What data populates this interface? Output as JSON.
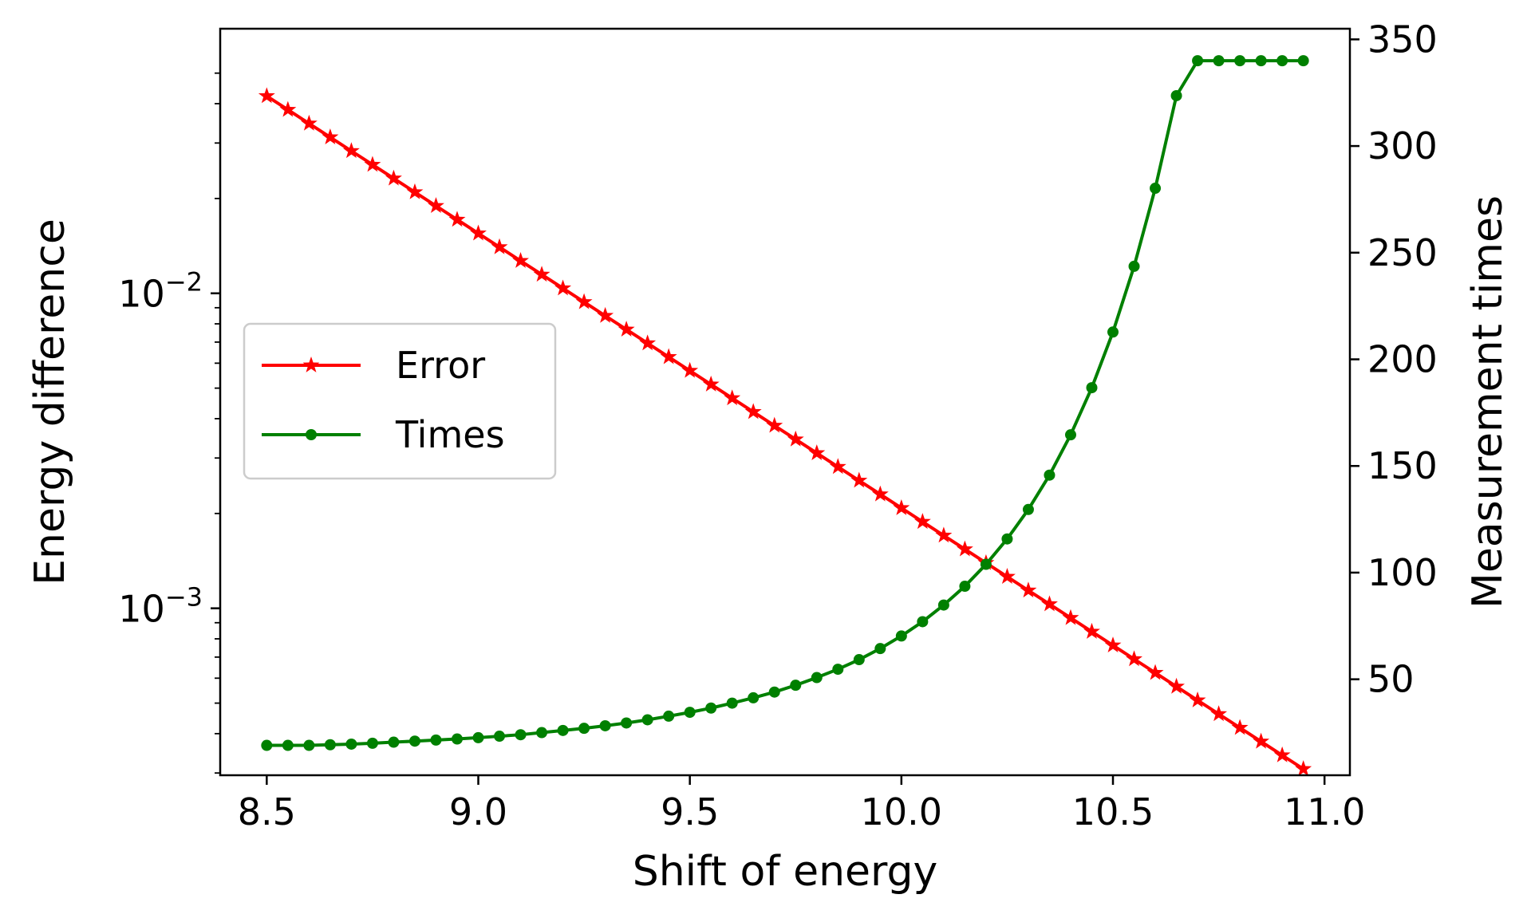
{
  "chart_data": {
    "type": "line",
    "title": "",
    "xlabel": "Shift of energy",
    "ylabel_left": "Energy difference",
    "ylabel_right": "Measurement times",
    "xlim": [
      8.39,
      11.06
    ],
    "ylim_left_log10": [
      -3.53,
      -1.16
    ],
    "ylim_right": [
      5,
      355
    ],
    "x_ticks": [
      8.5,
      9.0,
      9.5,
      10.0,
      10.5,
      11.0
    ],
    "x_tick_labels": [
      "8.5",
      "9.0",
      "9.5",
      "10.0",
      "10.5",
      "11.0"
    ],
    "y_left_major_ticks": [
      {
        "value": 0.01,
        "base": "10",
        "exp": "−2"
      },
      {
        "value": 0.001,
        "base": "10",
        "exp": "−3"
      }
    ],
    "y_left_minor_ticks": [
      0.0003,
      0.0004,
      0.0005,
      0.0006,
      0.0007,
      0.0008,
      0.0009,
      0.002,
      0.003,
      0.004,
      0.005,
      0.006,
      0.007,
      0.008,
      0.009,
      0.02,
      0.03,
      0.04,
      0.05
    ],
    "y_right_ticks": [
      50,
      100,
      150,
      200,
      250,
      300,
      350
    ],
    "y_right_tick_labels": [
      "50",
      "100",
      "150",
      "200",
      "250",
      "300",
      "350"
    ],
    "legend_position": "center-left",
    "series": [
      {
        "name": "Error",
        "axis": "left",
        "color": "#ff0000",
        "marker": "star",
        "x_start": 8.5,
        "x_step": 0.05,
        "count": 50,
        "y_start": 0.0423,
        "y_end": 0.000309,
        "scale": "log"
      },
      {
        "name": "Times",
        "axis": "right",
        "color": "#008000",
        "marker": "dot",
        "x": [
          8.5,
          8.55,
          8.6,
          8.65,
          8.7,
          8.75,
          8.8,
          8.85,
          8.9,
          8.95,
          9.0,
          9.05,
          9.1,
          9.15,
          9.2,
          9.25,
          9.3,
          9.35,
          9.4,
          9.45,
          9.5,
          9.55,
          9.6,
          9.65,
          9.7,
          9.75,
          9.8,
          9.85,
          9.9,
          9.95,
          10.0,
          10.05,
          10.1,
          10.15,
          10.2,
          10.25,
          10.3,
          10.35,
          10.4,
          10.45,
          10.5,
          10.55,
          10.6,
          10.65,
          10.7,
          10.75,
          10.8,
          10.85,
          10.9,
          10.95
        ],
        "values": [
          19,
          19,
          19,
          19.3,
          19.6,
          20,
          20.5,
          21,
          21.5,
          22,
          22.6,
          23.3,
          24,
          25,
          26,
          27,
          28.2,
          29.5,
          31,
          32.7,
          34.5,
          36.5,
          38.8,
          41.3,
          44,
          47.2,
          50.8,
          54.7,
          59.2,
          64.4,
          70.3,
          77,
          84.8,
          93.6,
          103.9,
          115.8,
          129.6,
          145.7,
          164.6,
          186.7,
          212.8,
          243.6,
          280.2,
          323.6,
          340,
          340,
          340,
          340,
          340,
          340
        ]
      }
    ]
  }
}
